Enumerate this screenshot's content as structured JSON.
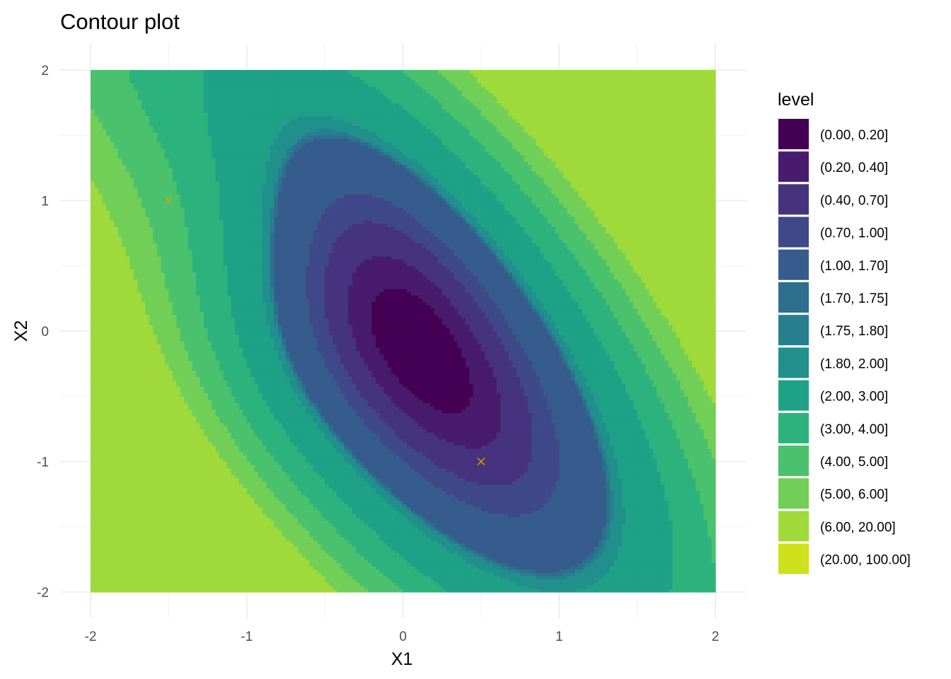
{
  "chart_data": {
    "type": "contour",
    "title": "Contour plot",
    "xlabel": "X1",
    "ylabel": "X2",
    "xlim": [
      -2,
      2
    ],
    "ylim": [
      -2,
      2
    ],
    "x_ticks": [
      -2,
      -1,
      0,
      1,
      2
    ],
    "y_ticks": [
      -2,
      -1,
      0,
      1,
      2
    ],
    "x_tick_labels": [
      "-2",
      "-1",
      "0",
      "1",
      "2"
    ],
    "y_tick_labels": [
      "-2",
      "-1",
      "0",
      "1",
      "2"
    ],
    "grid": true,
    "legend": {
      "title": "level",
      "placement": "right",
      "entries": [
        {
          "label": "(0.00, 0.20]",
          "lower": 0.0,
          "upper": 0.2,
          "color": "#440154"
        },
        {
          "label": "(0.20, 0.40]",
          "lower": 0.2,
          "upper": 0.4,
          "color": "#481B6D"
        },
        {
          "label": "(0.40, 0.70]",
          "lower": 0.4,
          "upper": 0.7,
          "color": "#46337E"
        },
        {
          "label": "(0.70, 1.00]",
          "lower": 0.7,
          "upper": 1.0,
          "color": "#3F4889"
        },
        {
          "label": "(1.00, 1.70]",
          "lower": 1.0,
          "upper": 1.7,
          "color": "#365C8D"
        },
        {
          "label": "(1.70, 1.75]",
          "lower": 1.7,
          "upper": 1.75,
          "color": "#2E6E8E"
        },
        {
          "label": "(1.75, 1.80]",
          "lower": 1.75,
          "upper": 1.8,
          "color": "#277F8E"
        },
        {
          "label": "(1.80, 2.00]",
          "lower": 1.8,
          "upper": 2.0,
          "color": "#21908C"
        },
        {
          "label": "(2.00, 3.00]",
          "lower": 2.0,
          "upper": 3.0,
          "color": "#1FA187"
        },
        {
          "label": "(3.00, 4.00]",
          "lower": 3.0,
          "upper": 4.0,
          "color": "#2DB27D"
        },
        {
          "label": "(4.00, 5.00]",
          "lower": 4.0,
          "upper": 5.0,
          "color": "#4AC16D"
        },
        {
          "label": "(5.00, 6.00]",
          "lower": 5.0,
          "upper": 6.0,
          "color": "#71CF57"
        },
        {
          "label": "(6.00, 20.00]",
          "lower": 6.0,
          "upper": 20.0,
          "color": "#9FDA3A"
        },
        {
          "label": "(20.00, 100.00]",
          "lower": 20.0,
          "upper": 100.0,
          "color": "#CFE11C"
        }
      ]
    },
    "marked_points": [
      {
        "x": -1.5,
        "y": 1.0,
        "shape": "x",
        "color": "#E69F00"
      },
      {
        "x": 0.5,
        "y": -1.0,
        "shape": "x",
        "color": "#E69F00"
      }
    ]
  }
}
